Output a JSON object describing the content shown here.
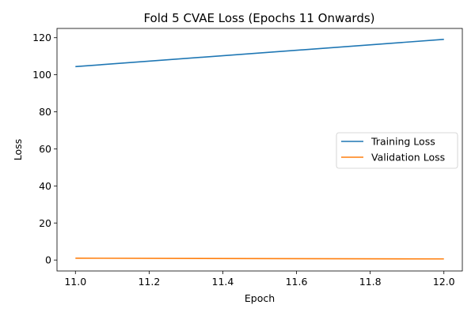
{
  "chart_data": {
    "type": "line",
    "title": "Fold 5 CVAE Loss (Epochs 11 Onwards)",
    "xlabel": "Epoch",
    "ylabel": "Loss",
    "x": [
      11.0,
      12.0
    ],
    "series": [
      {
        "name": "Training Loss",
        "color": "#1f77b4",
        "values": [
          104.4,
          119.1
        ]
      },
      {
        "name": "Validation Loss",
        "color": "#ff7f0e",
        "values": [
          1.0,
          0.6
        ]
      }
    ],
    "xlim": [
      10.95,
      12.05
    ],
    "ylim": [
      -5.9,
      125.0
    ],
    "xticks": [
      11.0,
      11.2,
      11.4,
      11.6,
      11.8,
      12.0
    ],
    "xtick_labels": [
      "11.0",
      "11.2",
      "11.4",
      "11.6",
      "11.8",
      "12.0"
    ],
    "yticks": [
      0,
      20,
      40,
      60,
      80,
      100,
      120
    ],
    "ytick_labels": [
      "0",
      "20",
      "40",
      "60",
      "80",
      "100",
      "120"
    ],
    "grid": false,
    "legend_position": "center-right"
  }
}
